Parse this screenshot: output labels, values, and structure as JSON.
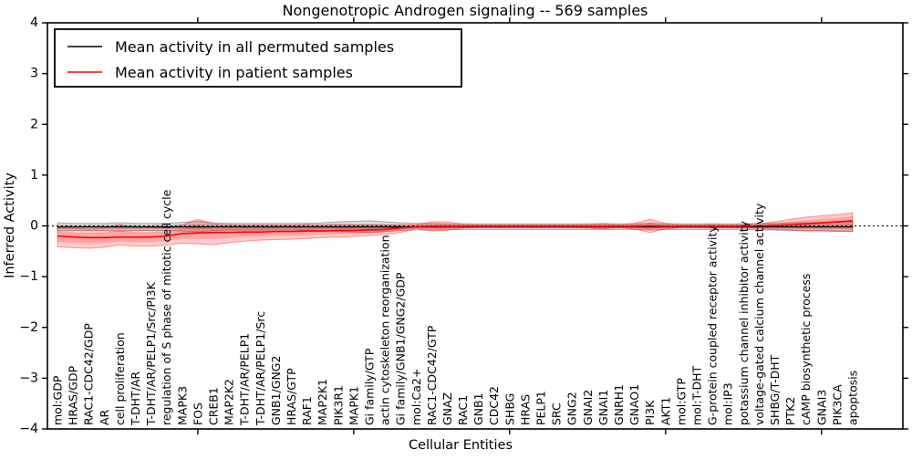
{
  "chart_data": {
    "type": "line",
    "title": "Nongenotropic Androgen signaling -- 569 samples",
    "xlabel": "Cellular Entities",
    "ylabel": "Inferred Activity",
    "ylim": [
      -4,
      4
    ],
    "yticks": [
      -4,
      -3,
      -2,
      -1,
      0,
      1,
      2,
      3,
      4
    ],
    "x_major_tick_indices": [
      9,
      19,
      29,
      39,
      49
    ],
    "zero_line": true,
    "legend_position": "upper left",
    "grid": false,
    "categories": [
      "mol:GDP",
      "HRAS/GDP",
      "RAC1-CDC42/GDP",
      "AR",
      "cell proliferation",
      "T-DHT/AR",
      "T-DHT/AR/PELP1/Src/PI3K",
      "regulation of S phase of mitotic cell cycle",
      "MAPK3",
      "FOS",
      "CREB1",
      "MAP2K2",
      "T-DHT/AR/PELP1",
      "T-DHT/AR/PELP1/Src",
      "GNB1/GNG2",
      "HRAS/GTP",
      "RAF1",
      "MAP2K1",
      "PIK3R1",
      "MAPK1",
      "Gi family/GTP",
      "actin cytoskeleton reorganization",
      "Gi family/GNB1/GNG2/GDP",
      "mol:Ca2+",
      "RAC1-CDC42/GTP",
      "GNAZ",
      "RAC1",
      "GNB1",
      "CDC42",
      "SHBG",
      "HRAS",
      "PELP1",
      "SRC",
      "GNG2",
      "GNAI2",
      "GNAI1",
      "GNRH1",
      "GNAO1",
      "PI3K",
      "AKT1",
      "mol:GTP",
      "mol:T-DHT",
      "G-protein coupled receptor activity",
      "mol:IP3",
      "potassium channel inhibitor activity",
      "voltage-gated calcium channel activity",
      "SHBG/T-DHT",
      "PTK2",
      "cAMP biosynthetic process",
      "GNAI3",
      "PIK3CA",
      "apoptosis"
    ],
    "series": [
      {
        "name": "Mean activity in all permuted samples",
        "color": "#000000",
        "band_alpha": 0.13,
        "values": [
          -0.02,
          -0.02,
          -0.02,
          -0.02,
          -0.02,
          -0.02,
          -0.02,
          -0.02,
          -0.02,
          -0.02,
          -0.02,
          -0.02,
          -0.02,
          -0.02,
          -0.02,
          -0.02,
          -0.02,
          -0.02,
          -0.02,
          -0.02,
          -0.02,
          -0.02,
          -0.02,
          -0.02,
          -0.02,
          -0.02,
          -0.02,
          -0.02,
          -0.02,
          -0.02,
          -0.02,
          -0.02,
          -0.02,
          -0.02,
          -0.02,
          -0.02,
          -0.02,
          -0.02,
          -0.02,
          -0.02,
          -0.02,
          -0.02,
          -0.02,
          -0.02,
          -0.02,
          -0.02,
          -0.02,
          -0.02,
          -0.02,
          -0.02,
          -0.02,
          -0.02
        ],
        "band_upper": [
          0.06,
          0.05,
          0.05,
          0.05,
          0.06,
          0.05,
          0.05,
          0.05,
          0.07,
          0.09,
          0.06,
          0.05,
          0.05,
          0.05,
          0.05,
          0.05,
          0.05,
          0.06,
          0.08,
          0.09,
          0.1,
          0.08,
          0.06,
          0.05,
          0.05,
          0.04,
          0.04,
          0.04,
          0.04,
          0.04,
          0.04,
          0.04,
          0.04,
          0.04,
          0.04,
          0.04,
          0.04,
          0.04,
          0.05,
          0.04,
          0.04,
          0.04,
          0.04,
          0.04,
          0.04,
          0.05,
          0.05,
          0.06,
          0.06,
          0.07,
          0.07,
          0.08
        ],
        "band_lower": [
          -0.1,
          -0.09,
          -0.09,
          -0.09,
          -0.1,
          -0.09,
          -0.09,
          -0.09,
          -0.1,
          -0.12,
          -0.09,
          -0.08,
          -0.08,
          -0.08,
          -0.08,
          -0.08,
          -0.08,
          -0.09,
          -0.11,
          -0.12,
          -0.13,
          -0.11,
          -0.09,
          -0.08,
          -0.08,
          -0.07,
          -0.07,
          -0.07,
          -0.07,
          -0.07,
          -0.07,
          -0.07,
          -0.07,
          -0.07,
          -0.07,
          -0.07,
          -0.07,
          -0.07,
          -0.08,
          -0.07,
          -0.07,
          -0.07,
          -0.07,
          -0.07,
          -0.07,
          -0.08,
          -0.08,
          -0.09,
          -0.1,
          -0.1,
          -0.11,
          -0.11
        ]
      },
      {
        "name": "Mean activity in patient samples",
        "color": "#ff0000",
        "band_alpha": 0.2,
        "values": [
          -0.2,
          -0.22,
          -0.23,
          -0.23,
          -0.22,
          -0.22,
          -0.22,
          -0.2,
          -0.15,
          -0.14,
          -0.13,
          -0.13,
          -0.12,
          -0.12,
          -0.11,
          -0.11,
          -0.1,
          -0.1,
          -0.09,
          -0.09,
          -0.08,
          -0.07,
          -0.04,
          -0.02,
          -0.01,
          -0.01,
          -0.01,
          -0.01,
          -0.01,
          -0.01,
          -0.01,
          -0.01,
          -0.01,
          -0.01,
          -0.01,
          -0.01,
          -0.01,
          -0.01,
          0.0,
          -0.01,
          -0.01,
          -0.01,
          -0.01,
          -0.01,
          -0.01,
          0.0,
          0.01,
          0.02,
          0.04,
          0.06,
          0.08,
          0.1
        ],
        "band_upper": [
          -0.04,
          -0.05,
          -0.06,
          -0.05,
          0.03,
          -0.04,
          -0.04,
          -0.03,
          0.02,
          0.13,
          0.04,
          0.02,
          0.02,
          0.02,
          0.02,
          0.02,
          0.03,
          0.02,
          0.03,
          0.02,
          0.02,
          0.02,
          0.02,
          0.02,
          0.08,
          0.08,
          0.03,
          0.02,
          0.02,
          0.02,
          0.02,
          0.02,
          0.02,
          0.02,
          0.03,
          0.05,
          0.02,
          0.05,
          0.13,
          0.05,
          0.02,
          0.02,
          0.03,
          0.02,
          0.03,
          0.04,
          0.08,
          0.13,
          0.17,
          0.2,
          0.22,
          0.26
        ],
        "band_lower": [
          -0.41,
          -0.43,
          -0.44,
          -0.42,
          -0.38,
          -0.4,
          -0.4,
          -0.38,
          -0.34,
          -0.35,
          -0.37,
          -0.33,
          -0.3,
          -0.28,
          -0.27,
          -0.26,
          -0.25,
          -0.23,
          -0.22,
          -0.21,
          -0.19,
          -0.17,
          -0.13,
          -0.05,
          -0.1,
          -0.09,
          -0.04,
          -0.03,
          -0.03,
          -0.03,
          -0.03,
          -0.03,
          -0.03,
          -0.03,
          -0.04,
          -0.06,
          -0.03,
          -0.06,
          -0.13,
          -0.06,
          -0.03,
          -0.03,
          -0.04,
          -0.03,
          -0.04,
          -0.05,
          -0.07,
          -0.08,
          -0.09,
          -0.09,
          -0.1,
          -0.1
        ]
      }
    ]
  }
}
